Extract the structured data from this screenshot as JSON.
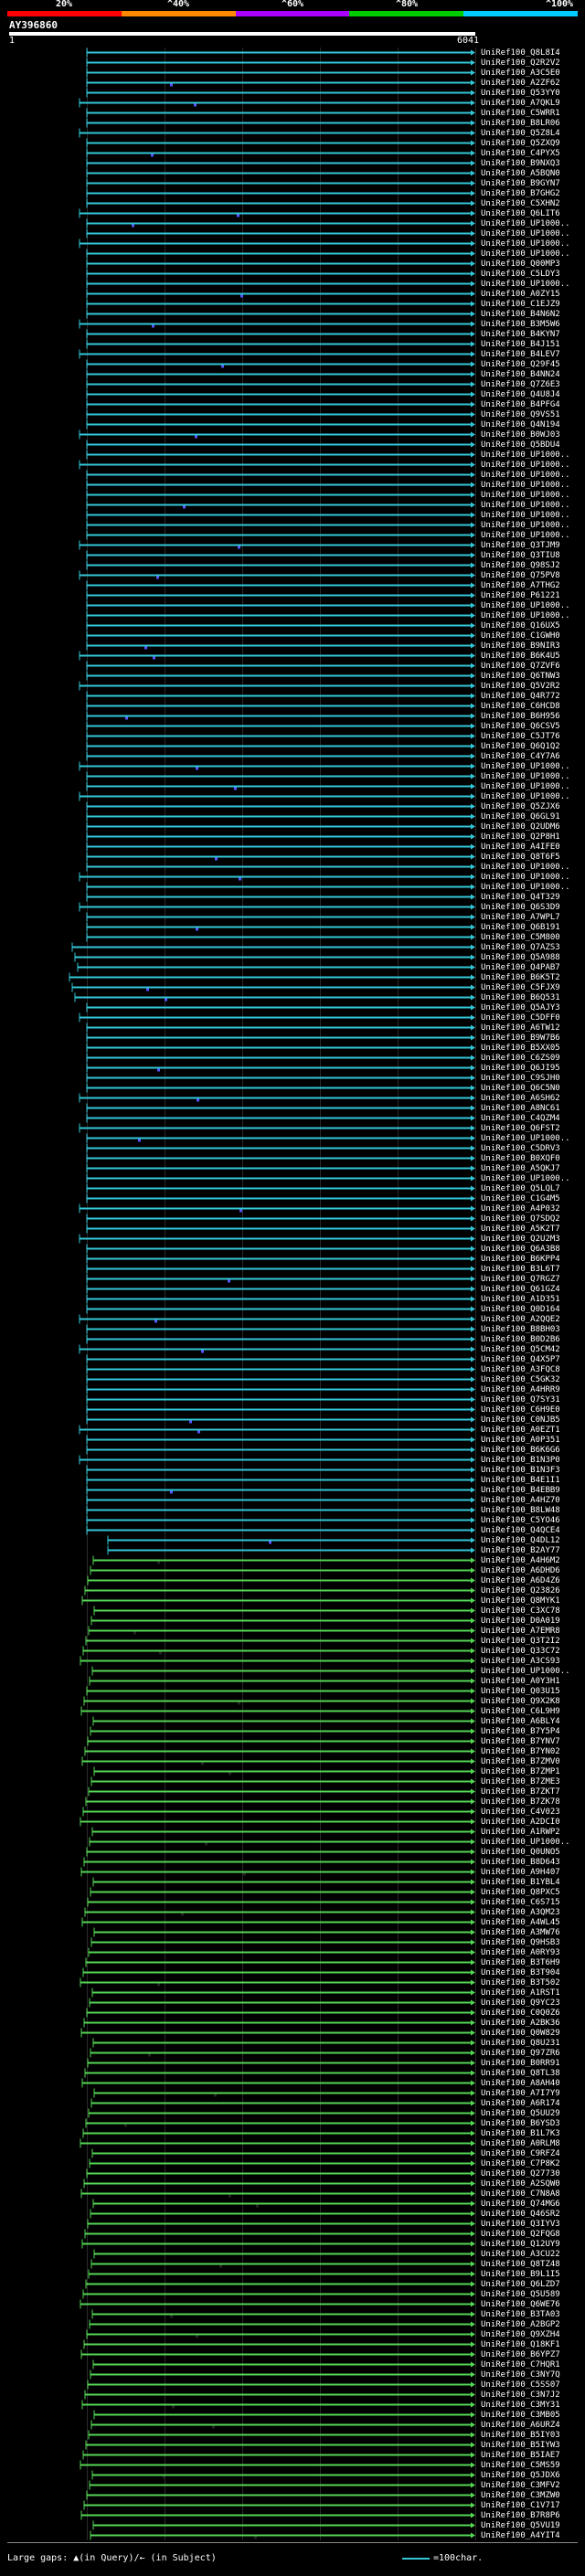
{
  "scale": {
    "ticks": [
      "20%",
      "^40%",
      "^60%",
      "^80%",
      "^100%"
    ],
    "colors": [
      "#ff0000",
      "#ff8800",
      "#aa00ff",
      "#00cc00",
      "#00ccff"
    ]
  },
  "query": {
    "id": "AY396860",
    "start": "1",
    "end": "6041"
  },
  "colors": {
    "cyan": "#33c7d8",
    "green": "#55d655",
    "blue": "#5555ff",
    "grid": "#2a2a2a"
  },
  "hits": [
    "UniRef100_Q8L8I4",
    "UniRef100_Q2R2V2",
    "UniRef100_A3C5E0",
    "UniRef100_A2ZF62",
    "UniRef100_Q53YY0",
    "UniRef100_A7QKL9",
    "UniRef100_C5WRR1",
    "UniRef100_B8LR06",
    "UniRef100_Q5Z8L4",
    "UniRef100_Q5ZXQ9",
    "UniRef100_C4PYX5",
    "UniRef100_B9NXQ3",
    "UniRef100_A5BQN0",
    "UniRef100_B9GYN7",
    "UniRef100_B7GHG2",
    "UniRef100_C5XHN2",
    "UniRef100_Q6LIT6",
    "UniRef100_UP1000..",
    "UniRef100_UP1000..",
    "UniRef100_UP1000..",
    "UniRef100_UP1000..",
    "UniRef100_Q00MP3",
    "UniRef100_C5LDY3",
    "UniRef100_UP1000..",
    "UniRef100_A0ZY15",
    "UniRef100_C1EJZ9",
    "UniRef100_B4N6N2",
    "UniRef100_B3M5W6",
    "UniRef100_B4KYN7",
    "UniRef100_B4J151",
    "UniRef100_B4LEV7",
    "UniRef100_Q29F45",
    "UniRef100_B4NN24",
    "UniRef100_Q7Z6E3",
    "UniRef100_Q4U8J4",
    "UniRef100_B4PFG4",
    "UniRef100_Q9VS51",
    "UniRef100_Q4N194",
    "UniRef100_B0WJ03",
    "UniRef100_Q5BDU4",
    "UniRef100_UP1000..",
    "UniRef100_UP1000..",
    "UniRef100_UP1000..",
    "UniRef100_UP1000..",
    "UniRef100_UP1000..",
    "UniRef100_UP1000..",
    "UniRef100_UP1000..",
    "UniRef100_UP1000..",
    "UniRef100_UP1000..",
    "UniRef100_Q3TJM9",
    "UniRef100_Q3TIU8",
    "UniRef100_Q98SJ2",
    "UniRef100_Q75PV8",
    "UniRef100_A7THG2",
    "UniRef100_P61221",
    "UniRef100_UP1000..",
    "UniRef100_UP1000..",
    "UniRef100_Q16UX5",
    "UniRef100_C1GWH0",
    "UniRef100_B9NIR3",
    "UniRef100_B6K4U5",
    "UniRef100_Q7ZVF6",
    "UniRef100_Q6TNW3",
    "UniRef100_Q5V2R2",
    "UniRef100_Q4R772",
    "UniRef100_C6HCD8",
    "UniRef100_B6H956",
    "UniRef100_Q6CSV5",
    "UniRef100_C5JT76",
    "UniRef100_Q6Q1Q2",
    "UniRef100_C4Y7A6",
    "UniRef100_UP1000..",
    "UniRef100_UP1000..",
    "UniRef100_UP1000..",
    "UniRef100_UP1000..",
    "UniRef100_Q5ZJX6",
    "UniRef100_Q6GL91",
    "UniRef100_Q2UDM6",
    "UniRef100_Q2P8H1",
    "UniRef100_A4IFE0",
    "UniRef100_Q8T6F5",
    "UniRef100_UP1000..",
    "UniRef100_UP1000..",
    "UniRef100_UP1000..",
    "UniRef100_Q4T329",
    "UniRef100_Q6S3D9",
    "UniRef100_A7WPL7",
    "UniRef100_Q6B191",
    "UniRef100_C5M800",
    "UniRef100_Q7AZS3",
    "UniRef100_Q5A988",
    "UniRef100_Q4PAB7",
    "UniRef100_B6K5T2",
    "UniRef100_C5FJX9",
    "UniRef100_B6Q531",
    "UniRef100_Q5AJY3",
    "UniRef100_C5DFF0",
    "UniRef100_A6TW12",
    "UniRef100_B9W7B6",
    "UniRef100_B5XX05",
    "UniRef100_C6ZS09",
    "UniRef100_Q6JI95",
    "UniRef100_C9SJH0",
    "UniRef100_Q6C5N0",
    "UniRef100_A6SH62",
    "UniRef100_A8NC61",
    "UniRef100_C4QZM4",
    "UniRef100_Q6FST2",
    "UniRef100_UP1000..",
    "UniRef100_C5DRV3",
    "UniRef100_B0XQF0",
    "UniRef100_A5QKJ7",
    "UniRef100_UP1000..",
    "UniRef100_Q5LQL7",
    "UniRef100_C1G4M5",
    "UniRef100_A4P032",
    "UniRef100_Q7SDQ2",
    "UniRef100_A5K2T7",
    "UniRef100_Q2U2M3",
    "UniRef100_Q6A3B8",
    "UniRef100_B6KPP4",
    "UniRef100_B3L6T7",
    "UniRef100_Q7RGZ7",
    "UniRef100_Q61GZ4",
    "UniRef100_A1D351",
    "UniRef100_Q0D164",
    "UniRef100_A2QQE2",
    "UniRef100_B8BH03",
    "UniRef100_B0D2B6",
    "UniRef100_Q5CM42",
    "UniRef100_Q4X5P7",
    "UniRef100_A3FQC8",
    "UniRef100_C5GK32",
    "UniRef100_A4HRR9",
    "UniRef100_Q7SY31",
    "UniRef100_C6H9E0",
    "UniRef100_C0NJB5",
    "UniRef100_A0EZT1",
    "UniRef100_A0P351",
    "UniRef100_B6K6G6",
    "UniRef100_B1N3P0",
    "UniRef100_B1N3F3",
    "UniRef100_B4E1I1",
    "UniRef100_B4EBB9",
    "UniRef100_A4HZ70",
    "UniRef100_B8LW48",
    "UniRef100_C5YO46",
    "UniRef100_Q4QCE4",
    "UniRef100_Q4DL12",
    "UniRef100_B2AY77",
    "UniRef100_A4H6M2",
    "UniRef100_A6DHD6",
    "UniRef100_A6D4Z6",
    "UniRef100_Q23826",
    "UniRef100_Q8MYK1",
    "UniRef100_C3XC78",
    "UniRef100_D0A019",
    "UniRef100_A7EMR8",
    "UniRef100_Q3T2I2",
    "UniRef100_Q33C72",
    "UniRef100_A3CS93",
    "UniRef100_UP1000..",
    "UniRef100_A0Y3H1",
    "UniRef100_Q03U15",
    "UniRef100_Q9X2K8",
    "UniRef100_C6L9H9",
    "UniRef100_A6BLY4",
    "UniRef100_B7Y5P4",
    "UniRef100_B7YNV7",
    "UniRef100_B7YN02",
    "UniRef100_B7ZMV0",
    "UniRef100_B7ZMP1",
    "UniRef100_B7ZME3",
    "UniRef100_B7ZKT7",
    "UniRef100_B7ZK78",
    "UniRef100_C4V023",
    "UniRef100_A2DCI0",
    "UniRef100_A1RWP2",
    "UniRef100_UP1000..",
    "UniRef100_Q0UNO5",
    "UniRef100_B8D643",
    "UniRef100_A9H407",
    "UniRef100_B1YBL4",
    "UniRef100_Q8PXC5",
    "UniRef100_C6S715",
    "UniRef100_A3QM23",
    "UniRef100_A4WL45",
    "UniRef100_A3MW76",
    "UniRef100_Q9HSB3",
    "UniRef100_A0RY93",
    "UniRef100_B3T6H9",
    "UniRef100_B3T904",
    "UniRef100_B3T502",
    "UniRef100_A1RST1",
    "UniRef100_Q9YC23",
    "UniRef100_C0Q0Z6",
    "UniRef100_A2BK36",
    "UniRef100_Q0W829",
    "UniRef100_Q8U231",
    "UniRef100_Q97ZR6",
    "UniRef100_B0RR91",
    "UniRef100_Q8TL38",
    "UniRef100_A8AH40",
    "UniRef100_A7I7Y9",
    "UniRef100_A6R174",
    "UniRef100_Q5UU29",
    "UniRef100_B6YSD3",
    "UniRef100_B1L7K3",
    "UniRef100_A0RLM8",
    "UniRef100_C9RFZ4",
    "UniRef100_C7P8K2",
    "UniRef100_Q27730",
    "UniRef100_A2SQW0",
    "UniRef100_C7N8A8",
    "UniRef100_Q74MG6",
    "UniRef100_Q46SR2",
    "UniRef100_Q3IYV3",
    "UniRef100_Q2FQG8",
    "UniRef100_Q12UY9",
    "UniRef100_A3CU22",
    "UniRef100_Q8TZ48",
    "UniRef100_B9L1I5",
    "UniRef100_Q6LZD7",
    "UniRef100_Q5U589",
    "UniRef100_Q6WE76",
    "UniRef100_B3TA03",
    "UniRef100_A2BGP2",
    "UniRef100_Q9XZH4",
    "UniRef100_Q18KF1",
    "UniRef100_B6YPZ7",
    "UniRef100_C7HQR1",
    "UniRef100_C3NY7Q",
    "UniRef100_C5SS07",
    "UniRef100_C3N7J2",
    "UniRef100_C3MY31",
    "UniRef100_C3MB05",
    "UniRef100_A6URZ4",
    "UniRef100_B5IY03",
    "UniRef100_B5IYW3",
    "UniRef100_B5IAE7",
    "UniRef100_C5MS59",
    "UniRef100_Q5JDX6",
    "UniRef100_C3MFV2",
    "UniRef100_C3MZW0",
    "UniRef100_C1V717",
    "UniRef100_B7R8P6",
    "UniRef100_Q5VU19",
    "UniRef100_A4YIT4"
  ],
  "legend": {
    "large_gaps": "Large gaps: ▲(in Query)/← (in Subject)",
    "char_scale": "=100char."
  }
}
